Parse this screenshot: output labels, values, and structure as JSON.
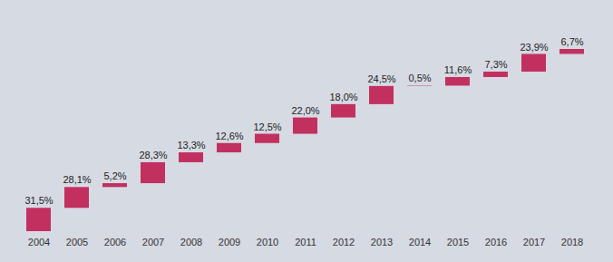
{
  "chart_data": {
    "type": "waterfall",
    "categories": [
      "2004",
      "2005",
      "2006",
      "2007",
      "2008",
      "2009",
      "2010",
      "2011",
      "2012",
      "2013",
      "2014",
      "2015",
      "2016",
      "2017",
      "2018"
    ],
    "values": [
      31.5,
      28.1,
      5.2,
      28.3,
      13.3,
      12.6,
      12.5,
      22.0,
      18.0,
      24.5,
      0.5,
      11.6,
      7.3,
      23.9,
      6.7
    ],
    "value_labels": [
      "31,5%",
      "28,1%",
      "5,2%",
      "28,3%",
      "13,3%",
      "12,6%",
      "12,5%",
      "22,0%",
      "18,0%",
      "24,5%",
      "0,5%",
      "11,6%",
      "7,3%",
      "23,9%",
      "6,7%"
    ],
    "color": "#c2305f",
    "data_labels": true,
    "stacked": true,
    "tick_labels": "x"
  }
}
